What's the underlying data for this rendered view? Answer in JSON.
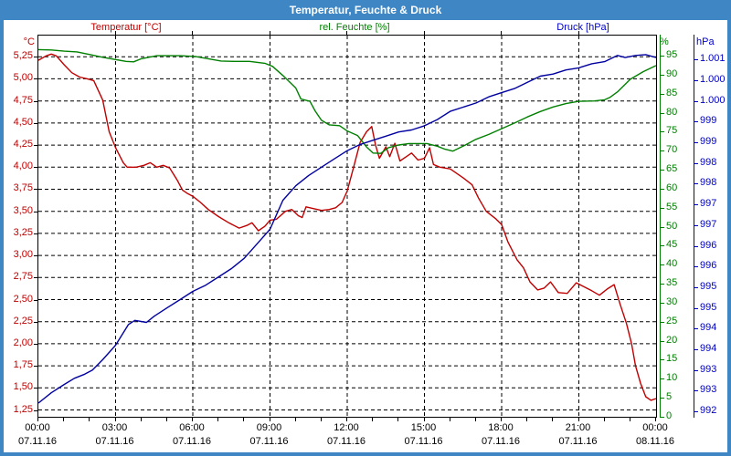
{
  "window": {
    "title": "Temperatur, Feuchte & Druck"
  },
  "legend": {
    "temperature": {
      "label": "Temperatur [°C]",
      "color": "#c00000"
    },
    "humidity": {
      "label": "rel. Feuchte [%]",
      "color": "#008000"
    },
    "pressure": {
      "label": "Druck [hPa]",
      "color": "#0000cc"
    }
  },
  "chart_data": {
    "type": "line",
    "title": "Temperatur, Feuchte & Druck",
    "grid": "dashed-black",
    "x": {
      "range_hours": [
        0,
        24
      ],
      "major_tick_hours": 3,
      "minor_tick_hours": 1,
      "ticks": [
        {
          "time": "00:00",
          "date": "07.11.16"
        },
        {
          "time": "03:00",
          "date": "07.11.16"
        },
        {
          "time": "06:00",
          "date": "07.11.16"
        },
        {
          "time": "09:00",
          "date": "07.11.16"
        },
        {
          "time": "12:00",
          "date": "07.11.16"
        },
        {
          "time": "15:00",
          "date": "07.11.16"
        },
        {
          "time": "18:00",
          "date": "07.11.16"
        },
        {
          "time": "21:00",
          "date": "07.11.16"
        },
        {
          "time": "00:00",
          "date": "08.11.16"
        }
      ]
    },
    "axes": {
      "temperature": {
        "unit": "°C",
        "color": "#c00000",
        "side": "left",
        "top": 5.49,
        "bottom": 1.173,
        "tick_values": [
          5.25,
          5.0,
          4.75,
          4.5,
          4.25,
          4.0,
          3.75,
          3.5,
          3.25,
          3.0,
          2.75,
          2.5,
          2.25,
          2.0,
          1.75,
          1.5,
          1.25
        ],
        "tick_labels": [
          "5,25",
          "5,00",
          "4,75",
          "4,50",
          "4,25",
          "4,00",
          "3,75",
          "3,50",
          "3,25",
          "3,00",
          "2,75",
          "2,50",
          "2,25",
          "2,00",
          "1,75",
          "1,50",
          "1,25"
        ]
      },
      "humidity": {
        "unit": "%",
        "color": "#008000",
        "side": "right-inner",
        "top": 100.3,
        "bottom": 0,
        "tick_values": [
          95,
          90,
          85,
          80,
          75,
          70,
          65,
          60,
          55,
          50,
          45,
          40,
          35,
          30,
          25,
          20,
          15,
          10,
          5,
          0
        ],
        "tick_labels": [
          "95",
          "90",
          "85",
          "80",
          "75",
          "70",
          "65",
          "60",
          "55",
          "50",
          "45",
          "40",
          "35",
          "30",
          "25",
          "20",
          "15",
          "10",
          "5",
          "0"
        ]
      },
      "pressure": {
        "unit": "hPa",
        "color": "#0000cc",
        "side": "right-outer",
        "top": 1001.08,
        "bottom": 991.87,
        "tick_values": [
          1000.5,
          1000.0,
          999.5,
          999.0,
          998.5,
          998.0,
          997.5,
          997.0,
          996.5,
          996.0,
          995.5,
          995.0,
          994.5,
          994.0,
          993.5,
          993.0,
          992.5,
          992.0
        ],
        "tick_labels": [
          "1.001",
          "1.000",
          "1.000",
          "999",
          "999",
          "998",
          "998",
          "997",
          "997",
          "996",
          "996",
          "995",
          "995",
          "994",
          "994",
          "993",
          "993",
          "992"
        ]
      }
    },
    "series": [
      {
        "name": "Temperatur",
        "slug": "temperature",
        "axis": "temperature",
        "color": "#c00000",
        "points": [
          [
            0,
            5.21
          ],
          [
            0.3,
            5.26
          ],
          [
            0.5,
            5.28
          ],
          [
            0.7,
            5.26
          ],
          [
            1.0,
            5.16
          ],
          [
            1.3,
            5.07
          ],
          [
            1.6,
            5.02
          ],
          [
            1.9,
            5.0
          ],
          [
            2.15,
            4.98
          ],
          [
            2.5,
            4.76
          ],
          [
            2.75,
            4.4
          ],
          [
            3.0,
            4.22
          ],
          [
            3.3,
            4.05
          ],
          [
            3.45,
            4.0
          ],
          [
            3.8,
            4.0
          ],
          [
            4.1,
            4.02
          ],
          [
            4.35,
            4.05
          ],
          [
            4.6,
            4.0
          ],
          [
            4.85,
            4.02
          ],
          [
            5.1,
            3.99
          ],
          [
            5.4,
            3.85
          ],
          [
            5.6,
            3.74
          ],
          [
            5.8,
            3.7
          ],
          [
            6.0,
            3.67
          ],
          [
            6.3,
            3.6
          ],
          [
            6.6,
            3.52
          ],
          [
            7.0,
            3.44
          ],
          [
            7.4,
            3.37
          ],
          [
            7.8,
            3.31
          ],
          [
            8.1,
            3.34
          ],
          [
            8.3,
            3.37
          ],
          [
            8.55,
            3.28
          ],
          [
            8.8,
            3.33
          ],
          [
            9.0,
            3.4
          ],
          [
            9.25,
            3.41
          ],
          [
            9.6,
            3.5
          ],
          [
            9.85,
            3.52
          ],
          [
            10.1,
            3.45
          ],
          [
            10.25,
            3.43
          ],
          [
            10.4,
            3.55
          ],
          [
            10.7,
            3.53
          ],
          [
            11.0,
            3.51
          ],
          [
            11.3,
            3.52
          ],
          [
            11.55,
            3.54
          ],
          [
            11.8,
            3.6
          ],
          [
            12.0,
            3.73
          ],
          [
            12.25,
            4.0
          ],
          [
            12.5,
            4.28
          ],
          [
            12.75,
            4.4
          ],
          [
            12.95,
            4.46
          ],
          [
            13.1,
            4.25
          ],
          [
            13.25,
            4.1
          ],
          [
            13.5,
            4.23
          ],
          [
            13.65,
            4.12
          ],
          [
            13.85,
            4.27
          ],
          [
            14.05,
            4.07
          ],
          [
            14.3,
            4.12
          ],
          [
            14.5,
            4.16
          ],
          [
            14.75,
            4.08
          ],
          [
            15.0,
            4.1
          ],
          [
            15.2,
            4.22
          ],
          [
            15.35,
            4.03
          ],
          [
            15.6,
            4.0
          ],
          [
            16.0,
            3.98
          ],
          [
            16.5,
            3.88
          ],
          [
            16.85,
            3.8
          ],
          [
            17.1,
            3.65
          ],
          [
            17.4,
            3.5
          ],
          [
            17.75,
            3.42
          ],
          [
            18.0,
            3.35
          ],
          [
            18.25,
            3.15
          ],
          [
            18.6,
            2.95
          ],
          [
            18.85,
            2.86
          ],
          [
            19.1,
            2.7
          ],
          [
            19.4,
            2.61
          ],
          [
            19.65,
            2.63
          ],
          [
            19.9,
            2.7
          ],
          [
            20.2,
            2.58
          ],
          [
            20.55,
            2.57
          ],
          [
            20.9,
            2.69
          ],
          [
            21.1,
            2.66
          ],
          [
            21.5,
            2.6
          ],
          [
            21.8,
            2.55
          ],
          [
            22.1,
            2.62
          ],
          [
            22.37,
            2.67
          ],
          [
            22.6,
            2.45
          ],
          [
            22.85,
            2.23
          ],
          [
            23.05,
            2.0
          ],
          [
            23.2,
            1.75
          ],
          [
            23.4,
            1.55
          ],
          [
            23.6,
            1.4
          ],
          [
            23.8,
            1.36
          ],
          [
            24,
            1.38
          ]
        ]
      },
      {
        "name": "rel. Feuchte",
        "slug": "humidity",
        "axis": "humidity",
        "color": "#008000",
        "points": [
          [
            0,
            96.6
          ],
          [
            0.5,
            96.5
          ],
          [
            1,
            96.2
          ],
          [
            1.5,
            96.0
          ],
          [
            2,
            95.3
          ],
          [
            2.5,
            94.6
          ],
          [
            3,
            94.0
          ],
          [
            3.4,
            93.5
          ],
          [
            3.7,
            93.4
          ],
          [
            4,
            94.2
          ],
          [
            4.6,
            95.0
          ],
          [
            5.5,
            95.0
          ],
          [
            6.1,
            94.8
          ],
          [
            6.6,
            94.2
          ],
          [
            7.1,
            93.6
          ],
          [
            7.6,
            93.5
          ],
          [
            8.2,
            93.5
          ],
          [
            8.8,
            93.0
          ],
          [
            9.1,
            92.2
          ],
          [
            9.5,
            89.8
          ],
          [
            10,
            86.5
          ],
          [
            10.2,
            83.6
          ],
          [
            10.55,
            83.0
          ],
          [
            10.75,
            80.5
          ],
          [
            11,
            78.0
          ],
          [
            11.3,
            76.8
          ],
          [
            11.7,
            76.6
          ],
          [
            12,
            75.2
          ],
          [
            12.4,
            74.0
          ],
          [
            12.75,
            71.0
          ],
          [
            13,
            69.4
          ],
          [
            13.3,
            69.3
          ],
          [
            13.6,
            70.8
          ],
          [
            14,
            71.5
          ],
          [
            14.4,
            71.9
          ],
          [
            15.1,
            71.9
          ],
          [
            15.5,
            71.2
          ],
          [
            15.8,
            70.4
          ],
          [
            16.1,
            69.9
          ],
          [
            16.5,
            71.2
          ],
          [
            17,
            73.0
          ],
          [
            17.5,
            74.3
          ],
          [
            18,
            75.8
          ],
          [
            18.5,
            77.3
          ],
          [
            19,
            78.9
          ],
          [
            19.5,
            80.3
          ],
          [
            20,
            81.5
          ],
          [
            20.5,
            82.4
          ],
          [
            21,
            83.0
          ],
          [
            21.6,
            83.1
          ],
          [
            22,
            83.4
          ],
          [
            22.2,
            84.0
          ],
          [
            22.5,
            85.5
          ],
          [
            23,
            88.8
          ],
          [
            23.5,
            90.8
          ],
          [
            24,
            92.4
          ]
        ]
      },
      {
        "name": "Druck",
        "slug": "pressure",
        "axis": "pressure",
        "color": "#0000a0",
        "points": [
          [
            0,
            992.2
          ],
          [
            0.5,
            992.45
          ],
          [
            1,
            992.65
          ],
          [
            1.4,
            992.8
          ],
          [
            1.8,
            992.9
          ],
          [
            2.1,
            993.0
          ],
          [
            2.5,
            993.25
          ],
          [
            3,
            993.6
          ],
          [
            3.5,
            994.1
          ],
          [
            3.75,
            994.2
          ],
          [
            4.2,
            994.15
          ],
          [
            4.5,
            994.3
          ],
          [
            5,
            994.5
          ],
          [
            5.5,
            994.7
          ],
          [
            6,
            994.9
          ],
          [
            6.5,
            995.05
          ],
          [
            7,
            995.25
          ],
          [
            7.5,
            995.45
          ],
          [
            8,
            995.7
          ],
          [
            8.5,
            996.05
          ],
          [
            9,
            996.4
          ],
          [
            9.5,
            997.1
          ],
          [
            10,
            997.45
          ],
          [
            10.5,
            997.7
          ],
          [
            11,
            997.9
          ],
          [
            11.5,
            998.1
          ],
          [
            12,
            998.3
          ],
          [
            12.5,
            998.45
          ],
          [
            13,
            998.55
          ],
          [
            13.5,
            998.65
          ],
          [
            14,
            998.75
          ],
          [
            14.5,
            998.8
          ],
          [
            15,
            998.9
          ],
          [
            15.5,
            999.05
          ],
          [
            16,
            999.25
          ],
          [
            16.5,
            999.35
          ],
          [
            17,
            999.45
          ],
          [
            17.5,
            999.6
          ],
          [
            18,
            999.7
          ],
          [
            18.5,
            999.8
          ],
          [
            19,
            999.95
          ],
          [
            19.5,
            1000.1
          ],
          [
            20,
            1000.15
          ],
          [
            20.5,
            1000.25
          ],
          [
            21,
            1000.3
          ],
          [
            21.5,
            1000.4
          ],
          [
            22,
            1000.45
          ],
          [
            22.5,
            1000.6
          ],
          [
            22.8,
            1000.55
          ],
          [
            23.2,
            1000.6
          ],
          [
            23.6,
            1000.62
          ],
          [
            24,
            1000.55
          ]
        ]
      }
    ]
  }
}
